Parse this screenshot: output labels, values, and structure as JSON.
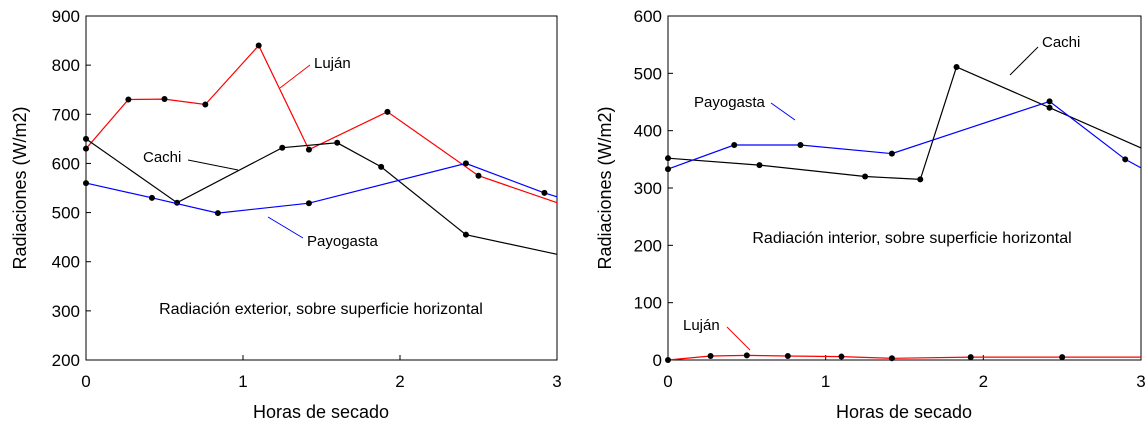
{
  "chart_data": [
    {
      "type": "line",
      "xlabel": "Horas de secado",
      "ylabel": "Radiaciones (W/m2)",
      "xlim": [
        0,
        3
      ],
      "ylim": [
        200,
        900
      ],
      "xticks": [
        0,
        1,
        2,
        3
      ],
      "yticks": [
        200,
        300,
        400,
        500,
        600,
        700,
        800,
        900
      ],
      "grid": false,
      "annotation": "Radiación exterior, sobre superficie horizontal",
      "series": [
        {
          "name": "Luján",
          "color": "#ff0000",
          "x": [
            0,
            0.27,
            0.5,
            0.76,
            1.1,
            1.42,
            1.92,
            2.5,
            3.0
          ],
          "y": [
            630,
            730,
            731,
            720,
            840,
            628,
            705,
            575,
            520
          ]
        },
        {
          "name": "Cachi",
          "color": "#000000",
          "x": [
            0,
            0.58,
            1.25,
            1.6,
            1.88,
            2.42,
            3.0
          ],
          "y": [
            650,
            520,
            632,
            642,
            593,
            455,
            415
          ]
        },
        {
          "name": "Payogasta",
          "color": "#0000ff",
          "x": [
            0,
            0.42,
            0.84,
            1.42,
            2.42,
            2.92,
            3.0
          ],
          "y": [
            560,
            530,
            499,
            519,
            600,
            540,
            532
          ]
        }
      ]
    },
    {
      "type": "line",
      "xlabel": "Horas de secado",
      "ylabel": "Radiaciones (W/m2)",
      "xlim": [
        0,
        3
      ],
      "ylim": [
        0,
        600
      ],
      "xticks": [
        0,
        1,
        2,
        3
      ],
      "yticks": [
        0,
        100,
        200,
        300,
        400,
        500,
        600
      ],
      "grid": false,
      "annotation": "Radiación interior, sobre superficie horizontal",
      "series": [
        {
          "name": "Cachi",
          "color": "#000000",
          "x": [
            0,
            0.58,
            1.25,
            1.6,
            1.83,
            2.42,
            3.0
          ],
          "y": [
            352,
            340,
            320,
            315,
            511,
            440,
            370
          ]
        },
        {
          "name": "Payogasta",
          "color": "#0000ff",
          "x": [
            0,
            0.42,
            0.84,
            1.42,
            2.42,
            2.9,
            3.0
          ],
          "y": [
            333,
            375,
            375,
            360,
            451,
            350,
            335
          ]
        },
        {
          "name": "Luján",
          "color": "#ff0000",
          "x": [
            0,
            0.27,
            0.5,
            0.76,
            1.1,
            1.42,
            1.92,
            2.5,
            3.0
          ],
          "y": [
            0,
            7,
            8,
            7,
            6,
            3,
            5,
            5,
            5
          ]
        }
      ]
    }
  ]
}
